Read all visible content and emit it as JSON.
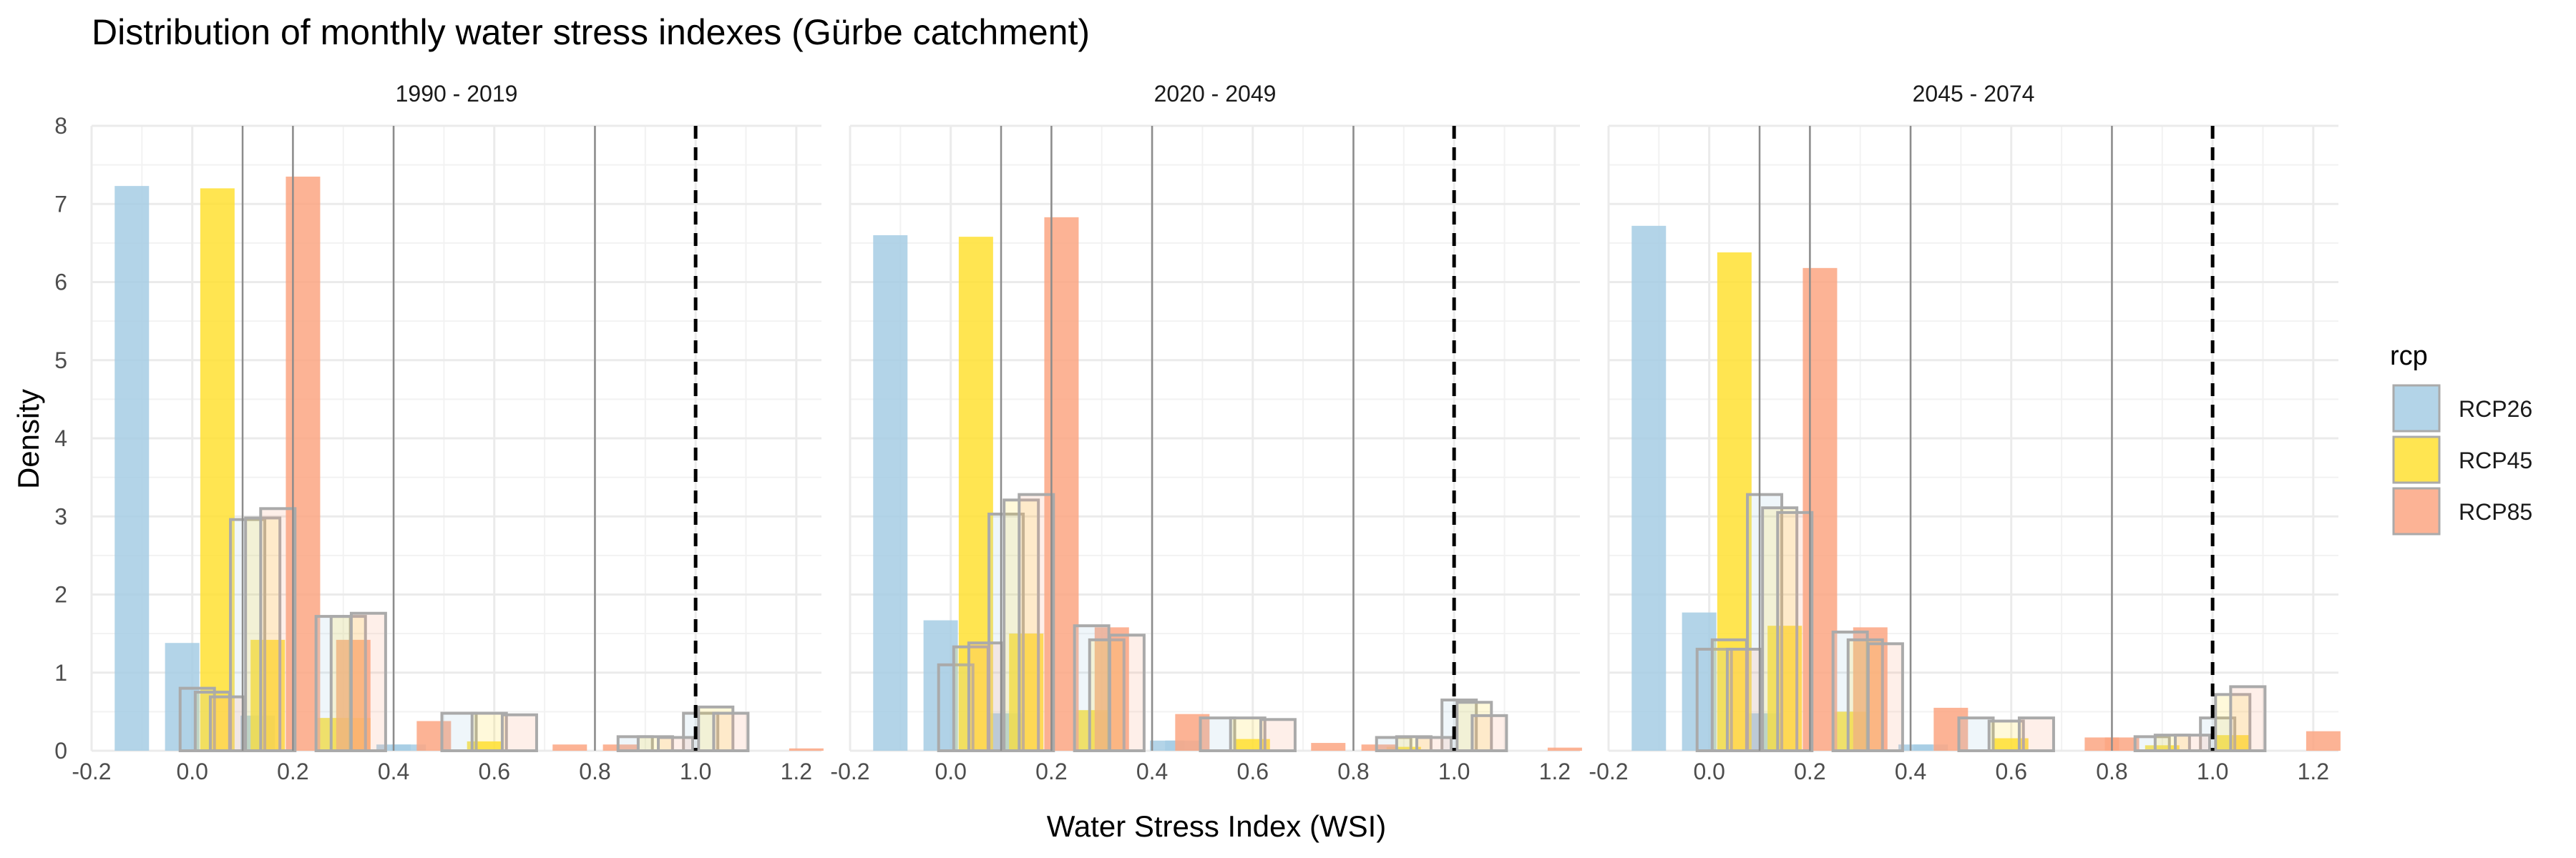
{
  "chart_data": {
    "type": "bar",
    "title": "Distribution of monthly water stress indexes (Gürbe catchment)",
    "xlabel": "Water Stress Index (WSI)",
    "ylabel": "Density",
    "xlim": [
      -0.2,
      1.25
    ],
    "ylim": [
      0,
      8
    ],
    "x_ticks": [
      -0.2,
      0.0,
      0.2,
      0.4,
      0.6,
      0.8,
      1.0,
      1.2
    ],
    "x_tick_labels": [
      "-0.2",
      "0.0",
      "0.2",
      "0.4",
      "0.6",
      "0.8",
      "1.0",
      "1.2"
    ],
    "y_ticks": [
      0,
      1,
      2,
      3,
      4,
      5,
      6,
      7,
      8
    ],
    "y_tick_labels": [
      "0",
      "1",
      "2",
      "3",
      "4",
      "5",
      "6",
      "7",
      "8"
    ],
    "reference_lines": {
      "dashed_threshold": 1.0,
      "class_boundaries": [
        0.1,
        0.2,
        0.4,
        0.8
      ]
    },
    "legend": {
      "title": "rcp",
      "entries": [
        {
          "name": "RCP26",
          "color": "#a6cde4"
        },
        {
          "name": "RCP45",
          "color": "#ffe033"
        },
        {
          "name": "RCP85",
          "color": "#fca683"
        }
      ]
    },
    "outline_color": "#aaaaaa",
    "facets": [
      {
        "label": "1990 - 2019",
        "filled_bars": {
          "RCP26": [
            [
              -0.12,
              7.23
            ],
            [
              -0.02,
              1.38
            ],
            [
              0.13,
              0.45
            ],
            [
              0.4,
              0.08
            ],
            [
              0.43,
              0.08
            ]
          ],
          "RCP45": [
            [
              0.05,
              7.2
            ],
            [
              0.15,
              1.42
            ],
            [
              0.28,
              0.42
            ],
            [
              0.32,
              0.42
            ],
            [
              0.58,
              0.12
            ]
          ],
          "RCP85": [
            [
              0.22,
              7.35
            ],
            [
              0.32,
              1.42
            ],
            [
              0.48,
              0.38
            ],
            [
              0.75,
              0.08
            ],
            [
              0.85,
              0.08
            ],
            [
              1.22,
              0.03
            ]
          ]
        },
        "outline_bars": {
          "RCP26": [
            [
              0.01,
              0.8
            ],
            [
              0.11,
              2.96
            ],
            [
              0.28,
              1.72
            ],
            [
              0.53,
              0.48
            ],
            [
              0.88,
              0.18
            ],
            [
              1.01,
              0.48
            ]
          ],
          "RCP45": [
            [
              0.04,
              0.75
            ],
            [
              0.14,
              2.98
            ],
            [
              0.31,
              1.72
            ],
            [
              0.59,
              0.48
            ],
            [
              0.92,
              0.18
            ],
            [
              1.04,
              0.56
            ]
          ],
          "RCP85": [
            [
              0.07,
              0.69
            ],
            [
              0.17,
              3.1
            ],
            [
              0.35,
              1.76
            ],
            [
              0.65,
              0.46
            ],
            [
              0.96,
              0.17
            ],
            [
              1.07,
              0.48
            ]
          ]
        }
      },
      {
        "label": "2020 - 2049",
        "filled_bars": {
          "RCP26": [
            [
              -0.12,
              6.6
            ],
            [
              -0.02,
              1.67
            ],
            [
              0.11,
              0.48
            ],
            [
              0.43,
              0.13
            ],
            [
              0.46,
              0.13
            ]
          ],
          "RCP45": [
            [
              0.05,
              6.58
            ],
            [
              0.15,
              1.5
            ],
            [
              0.28,
              0.52
            ],
            [
              0.6,
              0.15
            ],
            [
              0.9,
              0.05
            ]
          ],
          "RCP85": [
            [
              0.22,
              6.83
            ],
            [
              0.32,
              1.58
            ],
            [
              0.48,
              0.47
            ],
            [
              0.75,
              0.1
            ],
            [
              0.85,
              0.08
            ],
            [
              1.22,
              0.04
            ]
          ]
        },
        "outline_bars": {
          "RCP26": [
            [
              0.01,
              1.1
            ],
            [
              0.11,
              3.03
            ],
            [
              0.28,
              1.6
            ],
            [
              0.53,
              0.42
            ],
            [
              0.88,
              0.17
            ],
            [
              1.01,
              0.65
            ]
          ],
          "RCP45": [
            [
              0.04,
              1.33
            ],
            [
              0.14,
              3.21
            ],
            [
              0.31,
              1.42
            ],
            [
              0.59,
              0.42
            ],
            [
              0.92,
              0.18
            ],
            [
              1.04,
              0.62
            ]
          ],
          "RCP85": [
            [
              0.07,
              1.38
            ],
            [
              0.17,
              3.28
            ],
            [
              0.35,
              1.48
            ],
            [
              0.65,
              0.4
            ],
            [
              0.96,
              0.17
            ],
            [
              1.07,
              0.45
            ]
          ]
        }
      },
      {
        "label": "2045 - 2074",
        "filled_bars": {
          "RCP26": [
            [
              -0.12,
              6.72
            ],
            [
              -0.02,
              1.77
            ],
            [
              0.11,
              0.48
            ],
            [
              0.41,
              0.08
            ],
            [
              0.44,
              0.08
            ]
          ],
          "RCP45": [
            [
              0.05,
              6.38
            ],
            [
              0.15,
              1.6
            ],
            [
              0.28,
              0.5
            ],
            [
              0.6,
              0.16
            ],
            [
              0.9,
              0.07
            ],
            [
              1.04,
              0.2
            ]
          ],
          "RCP85": [
            [
              0.22,
              6.18
            ],
            [
              0.32,
              1.58
            ],
            [
              0.48,
              0.55
            ],
            [
              0.78,
              0.17
            ],
            [
              0.82,
              0.17
            ],
            [
              1.22,
              0.25
            ]
          ]
        },
        "outline_bars": {
          "RCP26": [
            [
              0.01,
              1.3
            ],
            [
              0.11,
              3.28
            ],
            [
              0.28,
              1.52
            ],
            [
              0.53,
              0.42
            ],
            [
              0.88,
              0.18
            ],
            [
              1.01,
              0.42
            ]
          ],
          "RCP45": [
            [
              0.04,
              1.42
            ],
            [
              0.14,
              3.11
            ],
            [
              0.31,
              1.42
            ],
            [
              0.59,
              0.38
            ],
            [
              0.92,
              0.2
            ],
            [
              1.04,
              0.72
            ]
          ],
          "RCP85": [
            [
              0.07,
              1.3
            ],
            [
              0.17,
              3.05
            ],
            [
              0.35,
              1.37
            ],
            [
              0.65,
              0.42
            ],
            [
              0.96,
              0.2
            ],
            [
              1.07,
              0.82
            ]
          ]
        }
      }
    ]
  }
}
